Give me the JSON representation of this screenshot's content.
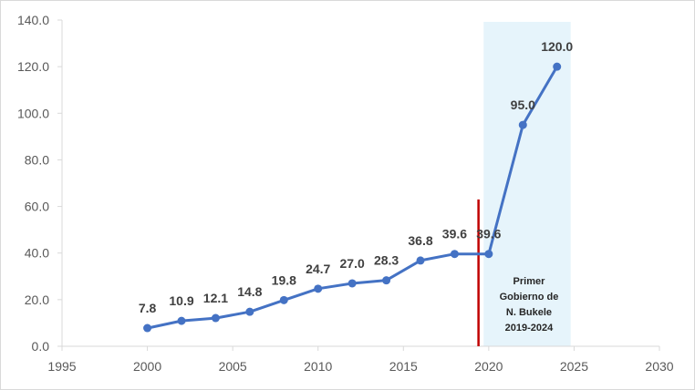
{
  "chart_data": {
    "type": "line",
    "title": "",
    "xlabel": "",
    "ylabel": "",
    "xlim": [
      1995,
      2030
    ],
    "ylim": [
      0,
      140
    ],
    "x_ticks": [
      1995,
      2000,
      2005,
      2010,
      2015,
      2020,
      2025,
      2030
    ],
    "x_tick_labels": [
      "1995",
      "2000",
      "2005",
      "2010",
      "2015",
      "2020",
      "2025",
      "2030"
    ],
    "y_ticks": [
      0,
      20,
      40,
      60,
      80,
      100,
      120,
      140
    ],
    "y_tick_labels": [
      "0.0",
      "20.0",
      "40.0",
      "60.0",
      "80.0",
      "100.0",
      "120.0",
      "140.0"
    ],
    "grid": false,
    "legend": "none",
    "series": [
      {
        "color": "#4472c4",
        "x": [
          2000,
          2002,
          2004,
          2006,
          2008,
          2010,
          2012,
          2014,
          2016,
          2018,
          2020,
          2022,
          2024
        ],
        "values": [
          7.8,
          10.9,
          12.1,
          14.8,
          19.8,
          24.7,
          27.0,
          28.3,
          36.8,
          39.6,
          39.6,
          95.0,
          120.0
        ],
        "labels": [
          "7.8",
          "10.9",
          "12.1",
          "14.8",
          "19.8",
          "24.7",
          "27.0",
          "28.3",
          "36.8",
          "39.6",
          "39.6",
          "95.0",
          "120.0"
        ]
      }
    ],
    "highlight_band": {
      "x_from": 2019.7,
      "x_to": 2024.8,
      "color": "#e6f4fb",
      "label_lines": [
        "Primer",
        "Gobierno de",
        "N. Bukele",
        "2019-2024"
      ]
    },
    "reference_line": {
      "x": 2019.4,
      "y_to": 63,
      "color": "#c00000"
    }
  }
}
